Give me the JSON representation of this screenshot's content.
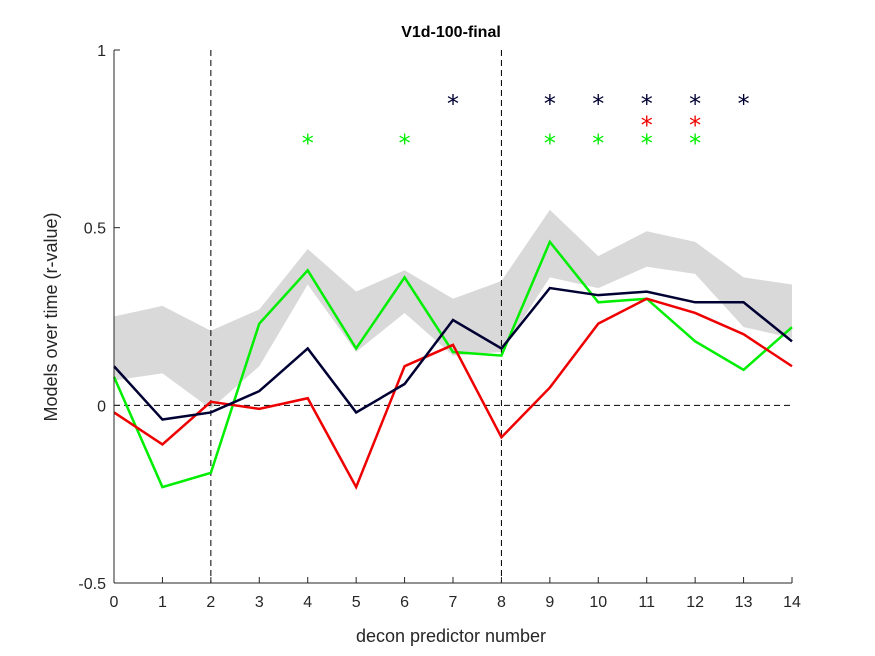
{
  "chart_data": {
    "type": "line",
    "title": "V1d-100-final",
    "xlabel": "decon predictor number",
    "ylabel": "Models over time (r-value)",
    "xlim": [
      0,
      14
    ],
    "ylim": [
      -0.5,
      1
    ],
    "x": [
      0,
      1,
      2,
      3,
      4,
      5,
      6,
      7,
      8,
      9,
      10,
      11,
      12,
      13,
      14
    ],
    "x_ticks": [
      "0",
      "1",
      "2",
      "3",
      "4",
      "5",
      "6",
      "7",
      "8",
      "9",
      "10",
      "11",
      "12",
      "13",
      "14"
    ],
    "y_ticks": [
      {
        "value": 1,
        "label": "1"
      },
      {
        "value": 0.5,
        "label": "0.5"
      },
      {
        "value": 0,
        "label": "0"
      },
      {
        "value": -0.5,
        "label": "-0.5"
      }
    ],
    "grid": false,
    "reference_lines": {
      "vertical_dashed": [
        2,
        8
      ],
      "horizontal_dashed": [
        0
      ]
    },
    "band": {
      "color": "#d9d9d9",
      "upper": [
        0.25,
        0.28,
        0.21,
        0.27,
        0.44,
        0.32,
        0.38,
        0.3,
        0.35,
        0.55,
        0.42,
        0.49,
        0.46,
        0.36,
        0.34
      ],
      "lower": [
        0.07,
        0.09,
        -0.01,
        0.11,
        0.34,
        0.15,
        0.26,
        0.14,
        0.15,
        0.36,
        0.33,
        0.39,
        0.37,
        0.22,
        0.19
      ]
    },
    "series": [
      {
        "color": "#00ee00",
        "values": [
          0.08,
          -0.23,
          -0.19,
          0.23,
          0.38,
          0.16,
          0.36,
          0.15,
          0.14,
          0.46,
          0.29,
          0.3,
          0.18,
          0.1,
          0.22
        ]
      },
      {
        "color": "#ee0000",
        "values": [
          -0.02,
          -0.11,
          0.01,
          -0.01,
          0.02,
          -0.23,
          0.11,
          0.17,
          -0.09,
          0.05,
          0.23,
          0.3,
          0.26,
          0.2,
          0.11
        ]
      },
      {
        "color": "#000033",
        "values": [
          0.11,
          -0.04,
          -0.02,
          0.04,
          0.16,
          -0.02,
          0.06,
          0.24,
          0.16,
          0.33,
          0.31,
          0.32,
          0.29,
          0.29,
          0.18
        ]
      }
    ],
    "significance": [
      {
        "color": "#000033",
        "x": [
          7,
          9,
          10,
          11,
          12,
          13
        ],
        "y": 0.87
      },
      {
        "color": "#ee0000",
        "x": [
          11,
          12
        ],
        "y": 0.81
      },
      {
        "color": "#00ee00",
        "x": [
          4,
          6,
          9,
          10,
          11,
          12
        ],
        "y": 0.76
      }
    ],
    "marker_symbol": "*"
  }
}
